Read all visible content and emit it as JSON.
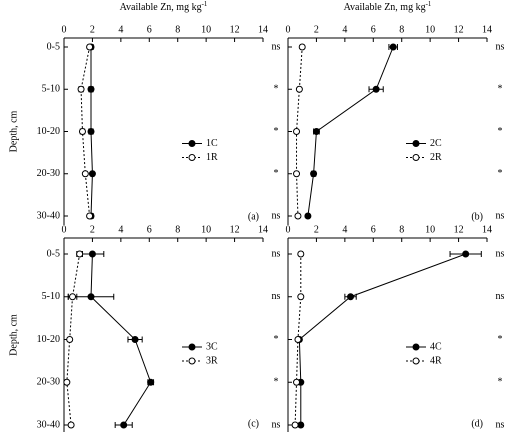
{
  "chart_data": [
    {
      "type": "line",
      "x_label": "Available Zn, mg kg",
      "x_label_sup": "-1",
      "y_label": "Depth, cm",
      "panel_label": "(a)",
      "categories": [
        "0-5",
        "5-10",
        "10-20",
        "20-30",
        "30-40"
      ],
      "xlim": [
        0,
        14
      ],
      "xticks": [
        0,
        2,
        4,
        6,
        8,
        10,
        12,
        14
      ],
      "series": [
        {
          "name": "1C",
          "color": "#000000",
          "marker": "filled",
          "dashed": false,
          "values": [
            1.9,
            1.9,
            1.9,
            2.0,
            1.9
          ],
          "errors": [
            0.15,
            0.15,
            0.15,
            0.1,
            0.15
          ]
        },
        {
          "name": "1R",
          "color": "#000000",
          "marker": "open",
          "dashed": true,
          "values": [
            1.8,
            1.2,
            1.3,
            1.5,
            1.8
          ],
          "errors": [
            0.1,
            0.15,
            0.15,
            0.1,
            0.1
          ]
        }
      ],
      "significance": [
        "ns",
        "*",
        "*",
        "*",
        "ns"
      ]
    },
    {
      "type": "line",
      "x_label": "Available Zn, mg kg",
      "x_label_sup": "-1",
      "panel_label": "(b)",
      "xlim": [
        0,
        14
      ],
      "xticks": [
        0,
        2,
        4,
        6,
        8,
        10,
        12,
        14
      ],
      "series": [
        {
          "name": "2C",
          "color": "#000000",
          "marker": "filled",
          "dashed": false,
          "values": [
            7.4,
            6.2,
            2.0,
            1.8,
            1.4
          ],
          "errors": [
            0.3,
            0.5,
            0.2,
            0.15,
            0.1
          ]
        },
        {
          "name": "2R",
          "color": "#000000",
          "marker": "open",
          "dashed": true,
          "values": [
            1.0,
            0.8,
            0.6,
            0.6,
            0.7
          ],
          "errors": [
            0.1,
            0.1,
            0.1,
            0.1,
            0.1
          ]
        }
      ],
      "significance": [
        "ns",
        "*",
        "*",
        "*",
        "ns"
      ]
    },
    {
      "type": "line",
      "y_label": "Depth, cm",
      "panel_label": "(c)",
      "categories": [
        "0-5",
        "5-10",
        "10-20",
        "20-30",
        "30-40"
      ],
      "xlim": [
        0,
        14
      ],
      "xticks": [
        0,
        2,
        4,
        6,
        8,
        10,
        12,
        14
      ],
      "series": [
        {
          "name": "3C",
          "color": "#000000",
          "marker": "filled",
          "dashed": false,
          "values": [
            2.0,
            1.9,
            5.0,
            6.1,
            4.2
          ],
          "errors": [
            0.8,
            1.6,
            0.5,
            0.2,
            0.6
          ]
        },
        {
          "name": "3R",
          "color": "#000000",
          "marker": "open",
          "dashed": true,
          "values": [
            1.1,
            0.6,
            0.4,
            0.2,
            0.5
          ],
          "errors": [
            0.2,
            0.3,
            0.1,
            0.1,
            0.1
          ]
        }
      ],
      "significance": [
        "ns",
        "ns",
        "*",
        "*",
        "ns"
      ]
    },
    {
      "type": "line",
      "panel_label": "(d)",
      "xlim": [
        0,
        14
      ],
      "xticks": [
        0,
        2,
        4,
        6,
        8,
        10,
        12,
        14
      ],
      "series": [
        {
          "name": "4C",
          "color": "#000000",
          "marker": "filled",
          "dashed": false,
          "values": [
            12.5,
            4.4,
            0.8,
            0.9,
            0.9
          ],
          "errors": [
            1.1,
            0.4,
            0.1,
            0.1,
            0.1
          ]
        },
        {
          "name": "4R",
          "color": "#000000",
          "marker": "open",
          "dashed": true,
          "values": [
            0.9,
            0.9,
            0.7,
            0.6,
            0.5
          ],
          "errors": [
            0.1,
            0.1,
            0.1,
            0.1,
            0.1
          ]
        }
      ],
      "significance": [
        "ns",
        "ns",
        "*",
        "*",
        "ns"
      ]
    }
  ]
}
